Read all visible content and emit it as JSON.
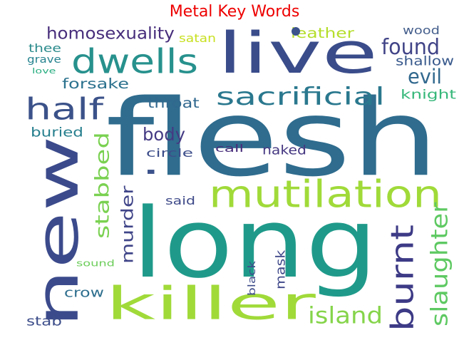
{
  "title": "Metal Key Words",
  "title_color": "#ee0000",
  "words": [
    {
      "text": "flesh",
      "color": "#2f6c8e"
    },
    {
      "text": "long",
      "color": "#1f9a8a"
    },
    {
      "text": "new",
      "color": "#3b4a8b"
    },
    {
      "text": "live",
      "color": "#3a4c8a"
    },
    {
      "text": "killer",
      "color": "#a0da39"
    },
    {
      "text": "mutilation",
      "color": "#a0da39"
    },
    {
      "text": "dwells",
      "color": "#27918d"
    },
    {
      "text": "half",
      "color": "#3b5289"
    },
    {
      "text": "sacrificial",
      "color": "#2a788e"
    },
    {
      "text": "burnt",
      "color": "#3d3a86"
    },
    {
      "text": "island",
      "color": "#85d44a"
    },
    {
      "text": "slaughter",
      "color": "#5ec962"
    },
    {
      "text": "found",
      "color": "#414487"
    },
    {
      "text": "evil",
      "color": "#31688e"
    },
    {
      "text": "stabbed",
      "color": "#7ad151"
    },
    {
      "text": "homosexuality",
      "color": "#472d7b"
    },
    {
      "text": "body",
      "color": "#443a83"
    },
    {
      "text": "murder",
      "color": "#404588"
    },
    {
      "text": "forsake",
      "color": "#2c728e"
    },
    {
      "text": "leather",
      "color": "#b5de2b"
    },
    {
      "text": "knight",
      "color": "#35b779"
    },
    {
      "text": "shallow",
      "color": "#38598c"
    },
    {
      "text": "wood",
      "color": "#46608d"
    },
    {
      "text": "throat",
      "color": "#31688e"
    },
    {
      "text": "satan",
      "color": "#c8e020"
    },
    {
      "text": "thee",
      "color": "#2c8b8c"
    },
    {
      "text": "grave",
      "color": "#26838f"
    },
    {
      "text": "love",
      "color": "#28ae80"
    },
    {
      "text": "buried",
      "color": "#277f8e"
    },
    {
      "text": "circle",
      "color": "#3d4e8a"
    },
    {
      "text": "call",
      "color": "#472c7a"
    },
    {
      "text": "naked",
      "color": "#453781"
    },
    {
      "text": "l",
      "color": "#3b528b"
    },
    {
      "text": "said",
      "color": "#3e4a89"
    },
    {
      "text": "crow",
      "color": "#2e6f8e"
    },
    {
      "text": "sound",
      "color": "#6ccd5a"
    },
    {
      "text": "mask",
      "color": "#3f4889"
    },
    {
      "text": "black",
      "color": "#3e4c8a"
    },
    {
      "text": "stab",
      "color": "#3d4e8a"
    }
  ]
}
